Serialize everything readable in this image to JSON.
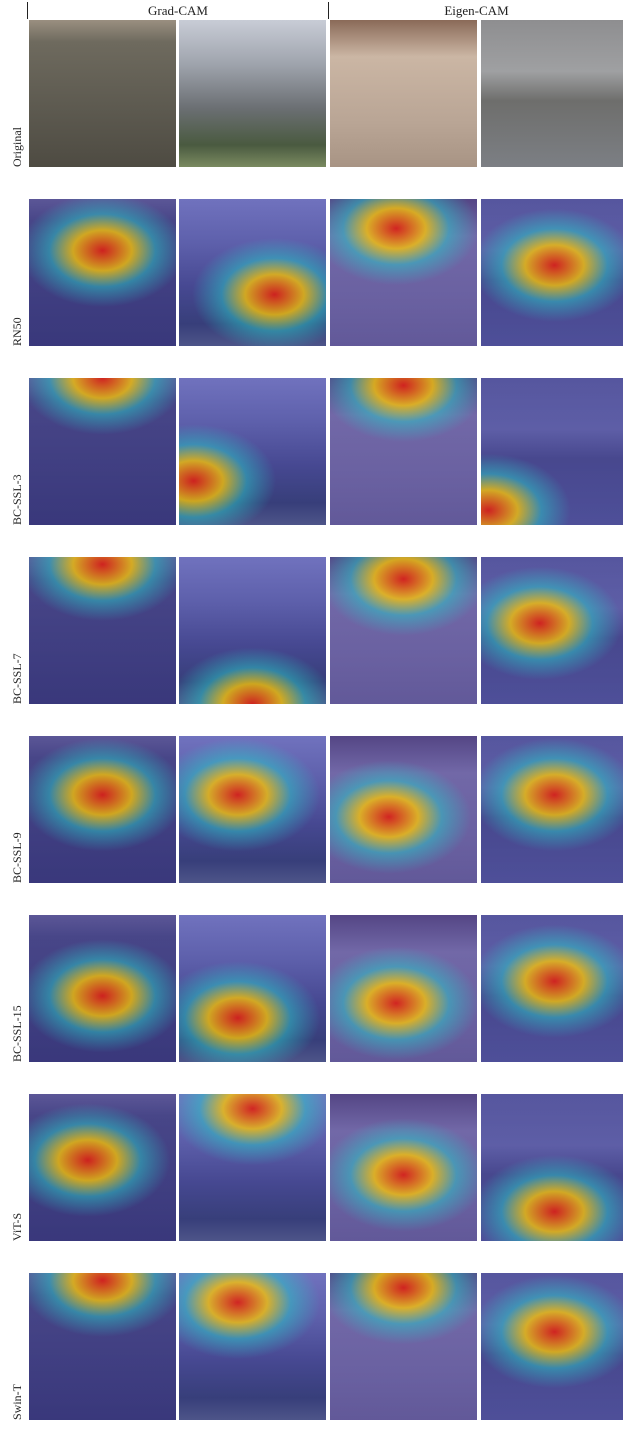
{
  "header": {
    "columns": [
      "Grad-CAM",
      "Eigen-CAM"
    ]
  },
  "rows": [
    "Original",
    "RN50",
    "BC-SSL-3",
    "BC-SSL-7",
    "BC-SSL-9",
    "BC-SSL-15",
    "ViT-S",
    "Swin-T"
  ]
}
